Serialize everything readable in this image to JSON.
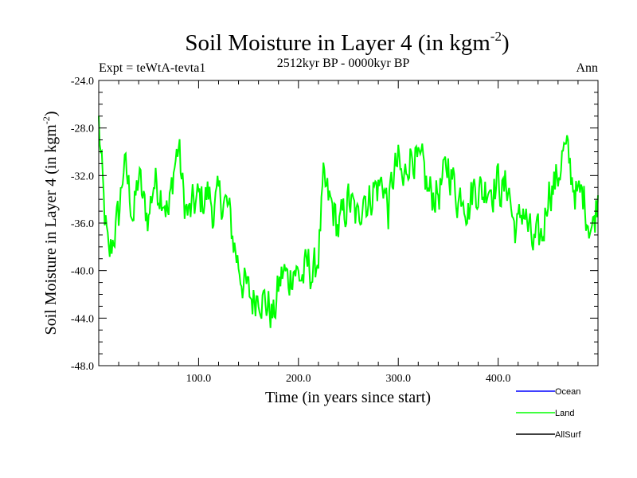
{
  "chart_data": {
    "type": "line",
    "title_main": "Soil Moisture in Layer 4 (in kgm",
    "title_sup": "-2",
    "title_close": ")",
    "subtitle": "2512kyr BP - 0000kyr BP",
    "left_label": "Expt = teWtA-tevta1",
    "right_label": "Ann",
    "xlabel": "Time (in years since start)",
    "ylabel_main": "Soil Moisture in Layer 4 (in kgm",
    "ylabel_sup": "-2",
    "ylabel_close": ")",
    "xlim": [
      0,
      500
    ],
    "ylim": [
      -48,
      -24
    ],
    "x_ticks": [
      100,
      200,
      300,
      400
    ],
    "x_tick_labels": [
      "100.0",
      "200.0",
      "300.0",
      "400.0"
    ],
    "y_ticks": [
      -24,
      -28,
      -32,
      -36,
      -40,
      -44,
      -48
    ],
    "y_tick_labels": [
      "-24.0",
      "-28.0",
      "-32.0",
      "-36.0",
      "-40.0",
      "-44.0",
      "-48.0"
    ],
    "legend": [
      {
        "name": "Ocean",
        "color": "#0000ff"
      },
      {
        "name": "Land",
        "color": "#00ff00"
      },
      {
        "name": "AllSurf",
        "color": "#000000"
      }
    ],
    "series": [
      {
        "name": "Land",
        "color": "#00ff00",
        "knots_x": [
          0,
          5,
          10,
          15,
          20,
          25,
          30,
          35,
          40,
          45,
          50,
          55,
          60,
          65,
          70,
          75,
          80,
          85,
          90,
          95,
          100,
          105,
          110,
          115,
          120,
          125,
          130,
          135,
          140,
          145,
          150,
          155,
          160,
          165,
          170,
          175,
          180,
          185,
          190,
          195,
          200,
          205,
          210,
          215,
          220,
          225,
          230,
          235,
          240,
          245,
          250,
          255,
          260,
          265,
          270,
          275,
          280,
          285,
          290,
          295,
          300,
          305,
          310,
          315,
          320,
          325,
          330,
          335,
          340,
          345,
          350,
          355,
          360,
          365,
          370,
          375,
          380,
          385,
          390,
          395,
          400,
          405,
          410,
          415,
          420,
          425,
          430,
          435,
          440,
          445,
          450,
          455,
          460,
          465,
          470,
          475,
          480,
          485,
          490,
          495,
          500
        ],
        "knots_y": [
          -27.5,
          -34.5,
          -39.2,
          -37.0,
          -35.5,
          -31.0,
          -33.0,
          -35.5,
          -32.0,
          -34.5,
          -35.5,
          -32.5,
          -33.0,
          -33.5,
          -35.5,
          -31.5,
          -29.5,
          -34.0,
          -35.5,
          -34.5,
          -34.0,
          -34.0,
          -33.5,
          -35.0,
          -34.0,
          -34.0,
          -35.0,
          -37.5,
          -39.5,
          -41.0,
          -42.0,
          -42.5,
          -41.5,
          -42.5,
          -43.0,
          -44.0,
          -41.5,
          -40.0,
          -41.0,
          -39.5,
          -40.5,
          -40.5,
          -39.5,
          -40.5,
          -38.5,
          -33.0,
          -34.0,
          -35.0,
          -36.5,
          -35.5,
          -34.0,
          -35.0,
          -36.0,
          -33.0,
          -34.5,
          -33.0,
          -33.0,
          -32.5,
          -35.0,
          -32.0,
          -31.0,
          -33.0,
          -30.5,
          -30.0,
          -31.5,
          -31.5,
          -33.5,
          -33.5,
          -33.5,
          -32.5,
          -31.0,
          -32.5,
          -34.0,
          -33.0,
          -35.0,
          -33.0,
          -33.0,
          -33.5,
          -32.5,
          -33.0,
          -32.5,
          -33.5,
          -32.5,
          -36.0,
          -36.5,
          -34.5,
          -36.5,
          -38.0,
          -37.5,
          -37.0,
          -33.0,
          -33.0,
          -32.0,
          -30.0,
          -30.5,
          -32.5,
          -34.0,
          -33.5,
          -35.5,
          -36.5,
          -33.5
        ],
        "amplitude": 2.6,
        "seed": 12345
      }
    ]
  }
}
